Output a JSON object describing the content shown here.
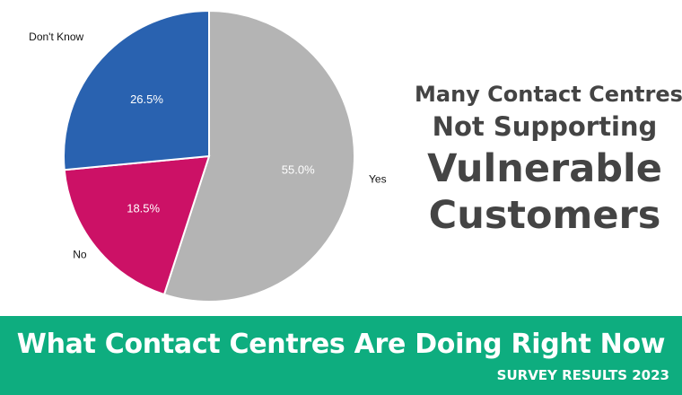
{
  "chart_data": {
    "type": "pie",
    "categories": [
      "Yes",
      "No",
      "Don't Know"
    ],
    "values": [
      55.0,
      18.5,
      26.5
    ],
    "value_labels": [
      "55.0%",
      "18.5%",
      "26.5%"
    ],
    "colors": [
      "#b4b4b4",
      "#cc1166",
      "#2962b0"
    ],
    "start": "12 o'clock, clockwise"
  },
  "headline": {
    "line1": "Many Contact Centres",
    "line2": "Not Supporting",
    "line3": "Vulnerable",
    "line4": "Customers"
  },
  "banner": {
    "title": "What Contact Centres Are Doing Right Now",
    "subtitle": "SURVEY RESULTS 2023",
    "color": "#0ead7f"
  }
}
